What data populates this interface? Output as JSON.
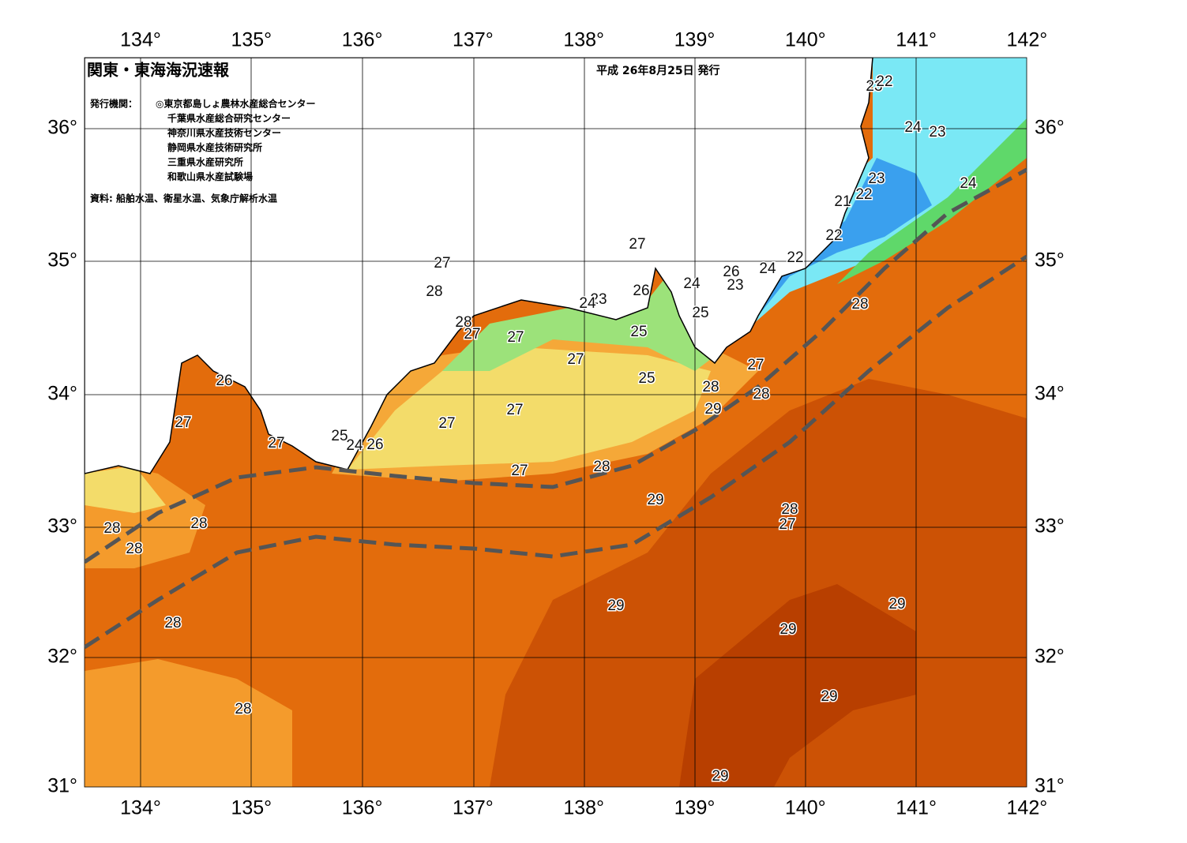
{
  "header": {
    "title": "関東・東海海況速報",
    "date": "平成 26年8月25日 発行",
    "agencies_label": "発行機関：",
    "agencies": [
      "◎東京都島しょ農林水産総合センター",
      "千葉県水産総合研究センター",
      "神奈川県水産技術センター",
      "静岡県水産技術研究所",
      "三重県水産研究所",
      "和歌山県水産試験場"
    ],
    "source": "資料: 船舶水温、衛星水温、気象庁解析水温"
  },
  "map": {
    "lon_labels": [
      "134°",
      "135°",
      "136°",
      "137°",
      "138°",
      "139°",
      "140°",
      "141°",
      "142°"
    ],
    "lat_labels": [
      "36°",
      "35°",
      "34°",
      "33°",
      "32°",
      "31°"
    ],
    "contour_labels": [
      23,
      22,
      24,
      23,
      23,
      22,
      21,
      24,
      22,
      22,
      24,
      26,
      23,
      24,
      25,
      27,
      26,
      25,
      25,
      23,
      24,
      27,
      28,
      28,
      27,
      27,
      27,
      27,
      28,
      28,
      29,
      26,
      27,
      27,
      25,
      24,
      26,
      27,
      27,
      27,
      28,
      29,
      28,
      27,
      28,
      28,
      28,
      28,
      29,
      29,
      29,
      28,
      29,
      28,
      29
    ]
  }
}
